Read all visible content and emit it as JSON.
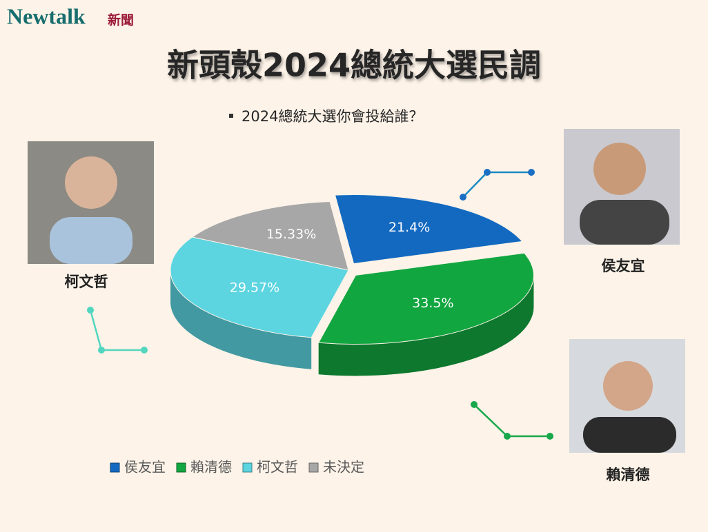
{
  "brand": {
    "name": "Newtalk",
    "tag": "新聞"
  },
  "chart_data": {
    "type": "pie3d",
    "title": "新頭殼2024總統大選民調",
    "subtitle": "2024總統大選你會投給誰？",
    "categories": [
      "侯友宜",
      "賴清德",
      "柯文哲",
      "未決定"
    ],
    "values": [
      21.4,
      33.5,
      29.57,
      15.33
    ],
    "value_labels": [
      "21.4%",
      "33.5%",
      "29.57%",
      "15.33%"
    ],
    "colors": [
      "#1369c0",
      "#12a640",
      "#5cd5e0",
      "#a7a7a7"
    ],
    "legend": "bottom-left"
  }
}
